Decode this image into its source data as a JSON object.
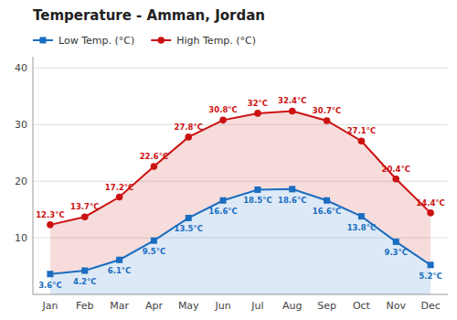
{
  "chart_data": {
    "type": "line",
    "title": "Temperature - Amman, Jordan",
    "categories": [
      "Jan",
      "Feb",
      "Mar",
      "Apr",
      "May",
      "Jun",
      "Jul",
      "Aug",
      "Sep",
      "Oct",
      "Nov",
      "Dec"
    ],
    "series": [
      {
        "name": "Low Temp. (°C)",
        "color": "#1a6dc0",
        "marker": "square",
        "values": [
          3.6,
          4.2,
          6.1,
          9.5,
          13.5,
          16.6,
          18.5,
          18.6,
          16.6,
          13.8,
          9.3,
          5.2
        ],
        "value_labels": [
          "3.6°C",
          "4.2°C",
          "6.1°C",
          "9.5°C",
          "13.5°C",
          "16.6°C",
          "18.5°C",
          "18.6°C",
          "16.6°C",
          "13.8°C",
          "9.3°C",
          "5.2°C"
        ]
      },
      {
        "name": "High Temp. (°C)",
        "color": "#cc1111",
        "marker": "circle",
        "values": [
          12.3,
          13.7,
          17.2,
          22.6,
          27.8,
          30.8,
          32.0,
          32.4,
          30.7,
          27.1,
          20.4,
          14.4
        ],
        "value_labels": [
          "12.3°C",
          "13.7°C",
          "17.2°C",
          "22.6°C",
          "27.8°C",
          "30.8°C",
          "32°C",
          "32.4°C",
          "30.7°C",
          "27.1°C",
          "20.4°C",
          "14.4°C"
        ]
      }
    ],
    "ylim": [
      0,
      42
    ],
    "yticks": [
      10,
      20,
      30,
      40
    ],
    "grid": true,
    "legend": "top-left",
    "data_labels": true
  }
}
